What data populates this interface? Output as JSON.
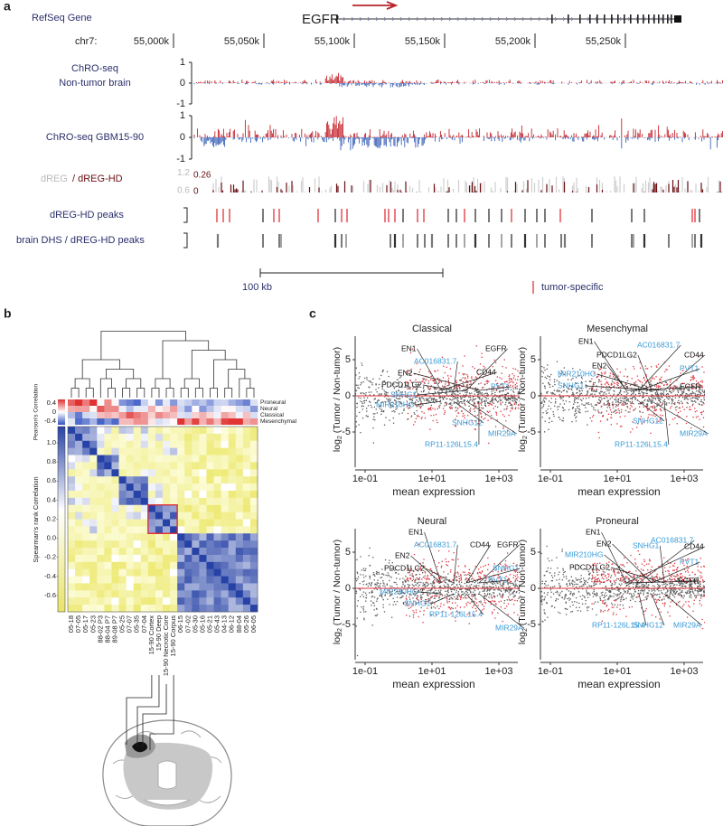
{
  "panel_a": {
    "label": "a",
    "gene_track": "RefSeq Gene",
    "gene": "EGFR",
    "chrom": "chr7:",
    "coord_ticks": [
      {
        "value": 55000,
        "label": "55,000k"
      },
      {
        "value": 55050,
        "label": "55,050k"
      },
      {
        "value": 55100,
        "label": "55,100k"
      },
      {
        "value": 55150,
        "label": "55,150k"
      },
      {
        "value": 55200,
        "label": "55,200k"
      },
      {
        "value": 55250,
        "label": "55,250k"
      }
    ],
    "tracks": [
      {
        "name_lines": [
          "ChRO-seq",
          "Non-tumor brain"
        ],
        "yticks": [
          1,
          0,
          -1
        ]
      },
      {
        "name_lines": [
          "ChRO-seq GBM15-90"
        ],
        "yticks": [
          1,
          0,
          -1
        ]
      }
    ],
    "dreg": {
      "name": "dREG",
      "name_hd": "/ dREG-HD",
      "ticks": [
        1.2,
        0.6
      ],
      "hd_ticks": [
        0.26,
        0
      ]
    },
    "peak_rows": [
      "dREG-HD peaks",
      "brain DHS / dREG-HD peaks"
    ],
    "scale_bar": "100 kb",
    "legend": "tumor-specific"
  },
  "panel_b": {
    "label": "b",
    "subtypes": [
      "Proneural",
      "Neural",
      "Classical",
      "Mesenchymal"
    ],
    "pearson_title": "Pearson's Correlation",
    "pearson_ticks": [
      0.4,
      0,
      -0.4
    ],
    "spearman_title": "Spearman's rank Correlation",
    "spearman_ticks": [
      {
        "value": 1,
        "label": "1.0"
      },
      0.8,
      0.6,
      0.4,
      0.2,
      {
        "value": 0,
        "label": "0.0"
      },
      -0.2,
      -0.4,
      -0.6
    ],
    "samples": [
      "05-18",
      "07-05",
      "05-17",
      "05-23",
      "88-02 P3",
      "88-04 P7",
      "89-08 P7",
      "05-25",
      "07-07",
      "05-35",
      "07-04",
      "15-90 Cortex",
      "15-90 Deep",
      "15-90 Necrotic Core",
      "15-90 Corpus",
      "06-15",
      "07-02",
      "05-30",
      "05-16",
      "05-21",
      "05-43",
      "04-13",
      "06-12",
      "88-04",
      "05-26",
      "06-05"
    ]
  },
  "panel_c": {
    "label": "c",
    "axes": {
      "yticks": [
        5,
        0,
        -5
      ],
      "xticks": [
        {
          "value": -1,
          "label": "1e-01"
        },
        {
          "value": 1,
          "label": "1e+01"
        },
        {
          "value": 3,
          "label": "1e+03"
        }
      ],
      "xlabel": "mean expression",
      "ylabel_base": "log",
      "ylabel_sub": "2",
      "ylabel_rest": " (Tumor / Non-tumor)"
    },
    "plots": [
      {
        "title": "Classical",
        "genes": [
          {
            "text": "EN1",
            "color": "#111111"
          },
          {
            "text": "AC016831.7",
            "color": "#3a9ad6"
          },
          {
            "text": "EGFR",
            "color": "#111111"
          },
          {
            "text": "EN2",
            "color": "#111111"
          },
          {
            "text": "CD44",
            "color": "#111111"
          },
          {
            "text": "PDCD1LG2",
            "color": "#111111"
          },
          {
            "text": "SNHG1",
            "color": "#3a9ad6"
          },
          {
            "text": "PVT1",
            "color": "#3a9ad6"
          },
          {
            "text": "MIR210HG",
            "color": "#3a9ad6"
          },
          {
            "text": "SNHG12",
            "color": "#3a9ad6"
          },
          {
            "text": "MIR29A",
            "color": "#3a9ad6"
          },
          {
            "text": "RP11-126L15.4",
            "color": "#3a9ad6"
          }
        ]
      },
      {
        "title": "Mesenchymal",
        "genes": [
          {
            "text": "EN1",
            "color": "#111111"
          },
          {
            "text": "AC016831.7",
            "color": "#3a9ad6"
          },
          {
            "text": "PDCD1LG2",
            "color": "#111111"
          },
          {
            "text": "CD44",
            "color": "#111111"
          },
          {
            "text": "EN2",
            "color": "#111111"
          },
          {
            "text": "PVT1",
            "color": "#3a9ad6"
          },
          {
            "text": "MIR210HG",
            "color": "#3a9ad6"
          },
          {
            "text": "SNHG1",
            "color": "#3a9ad6"
          },
          {
            "text": "EGFR",
            "color": "#111111"
          },
          {
            "text": "SNHG12",
            "color": "#3a9ad6"
          },
          {
            "text": "MIR29A",
            "color": "#3a9ad6"
          },
          {
            "text": "RP11-126L15.4",
            "color": "#3a9ad6"
          }
        ]
      },
      {
        "title": "Neural",
        "genes": [
          {
            "text": "EN1",
            "color": "#111111"
          },
          {
            "text": "AC016831.7",
            "color": "#3a9ad6"
          },
          {
            "text": "CD44",
            "color": "#111111"
          },
          {
            "text": "EGFR",
            "color": "#111111"
          },
          {
            "text": "EN2",
            "color": "#111111"
          },
          {
            "text": "PDCD1LG2",
            "color": "#111111"
          },
          {
            "text": "SNHG1",
            "color": "#3a9ad6"
          },
          {
            "text": "PVT1",
            "color": "#3a9ad6"
          },
          {
            "text": "MIR210HG",
            "color": "#3a9ad6"
          },
          {
            "text": "SNHG1",
            "color": "#3a9ad6"
          },
          {
            "text": "RP11-126L15.4",
            "color": "#3a9ad6"
          },
          {
            "text": "MIR29A",
            "color": "#3a9ad6"
          }
        ]
      },
      {
        "title": "Proneural",
        "genes": [
          {
            "text": "EN1",
            "color": "#111111"
          },
          {
            "text": "AC016831.7",
            "color": "#3a9ad6"
          },
          {
            "text": "EN2",
            "color": "#111111"
          },
          {
            "text": "SNHG1",
            "color": "#3a9ad6"
          },
          {
            "text": "CD44",
            "color": "#111111"
          },
          {
            "text": "MIR210HG",
            "color": "#3a9ad6"
          },
          {
            "text": "PVT1",
            "color": "#3a9ad6"
          },
          {
            "text": "PDCD1LG2",
            "color": "#111111"
          },
          {
            "text": "EGFR",
            "color": "#111111"
          },
          {
            "text": "RP11-126L15.4",
            "color": "#3a9ad6"
          },
          {
            "text": "SNHG12",
            "color": "#3a9ad6"
          },
          {
            "text": "MIR29A",
            "color": "#3a9ad6"
          }
        ]
      }
    ]
  }
}
